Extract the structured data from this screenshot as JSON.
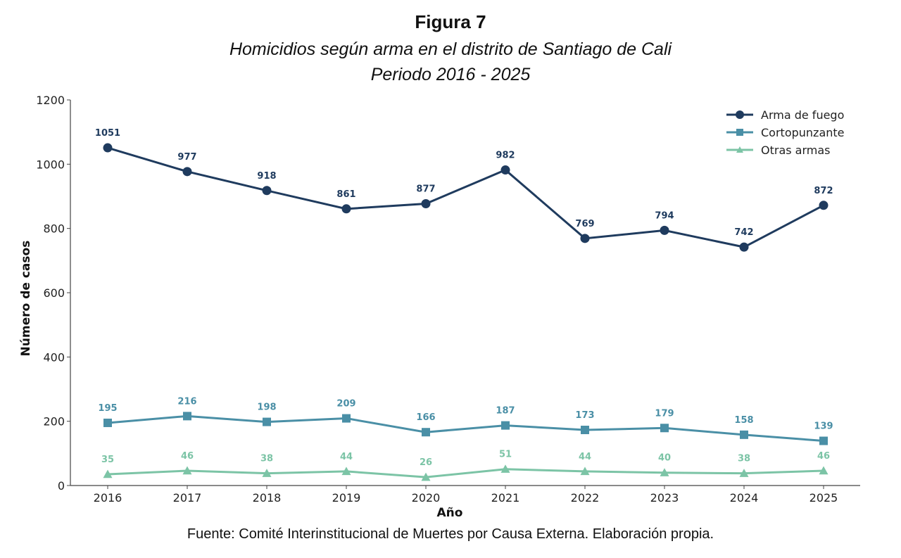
{
  "figure_label": "Figura 7",
  "subtitle": "Homicidios según arma en el distrito de Santiago de Cali",
  "period": "Periodo 2016 - 2025",
  "source": "Fuente: Comité Interinstitucional de Muertes por Causa Externa. Elaboración propia.",
  "chart_data": {
    "type": "line",
    "xlabel": "Año",
    "ylabel": "Número de casos",
    "ylim": [
      0,
      1200
    ],
    "yticks": [
      0,
      200,
      400,
      600,
      800,
      1000,
      1200
    ],
    "categories": [
      "2016",
      "2017",
      "2018",
      "2019",
      "2020",
      "2021",
      "2022",
      "2023",
      "2024",
      "2025"
    ],
    "legend_position": "top-right",
    "grid": false,
    "series": [
      {
        "name": "Arma de fuego",
        "color": "#1f3b5e",
        "marker": "circle",
        "values": [
          1051,
          977,
          918,
          861,
          877,
          982,
          769,
          794,
          742,
          872
        ]
      },
      {
        "name": "Cortopunzante",
        "color": "#4a8fa6",
        "marker": "square",
        "values": [
          195,
          216,
          198,
          209,
          166,
          187,
          173,
          179,
          158,
          139
        ]
      },
      {
        "name": "Otras armas",
        "color": "#7cc4a6",
        "marker": "triangle",
        "values": [
          35,
          46,
          38,
          44,
          26,
          51,
          44,
          40,
          38,
          46
        ]
      }
    ]
  }
}
